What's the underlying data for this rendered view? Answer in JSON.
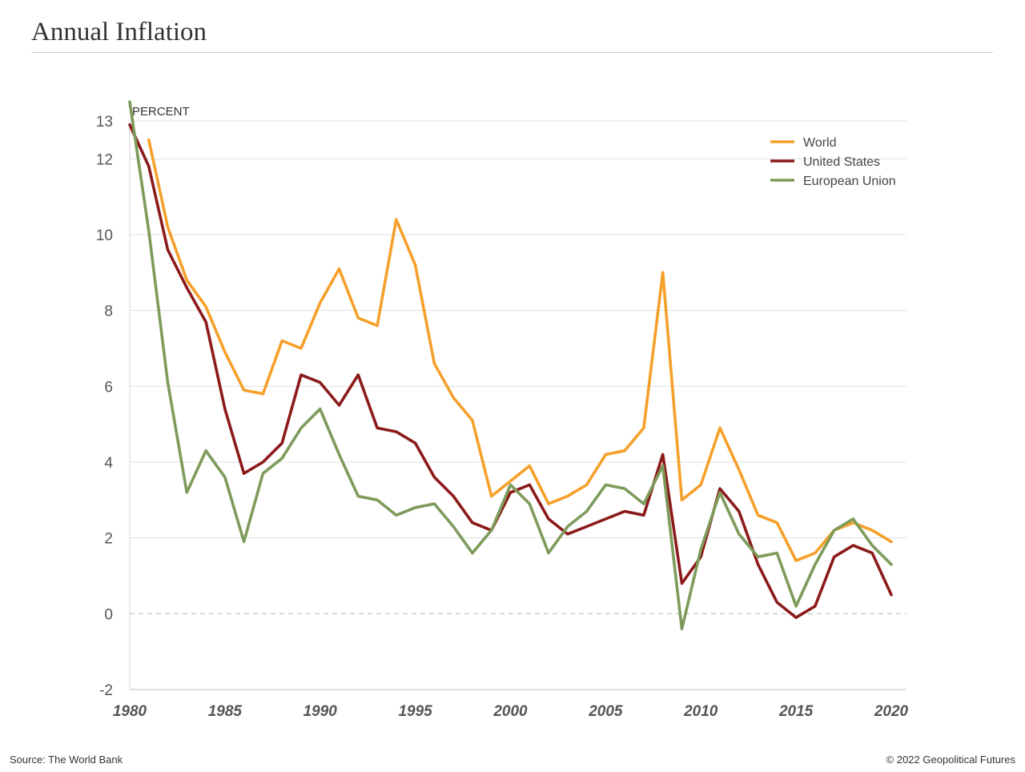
{
  "header": {
    "title": "Annual Inflation"
  },
  "footer": {
    "source": "Source: The World Bank",
    "copyright": "© 2022 Geopolitical Futures"
  },
  "chart_data": {
    "type": "line",
    "title": "Annual Inflation",
    "ylabel": "PERCENT",
    "xlabel": "",
    "xlim": [
      1980,
      2020.8
    ],
    "ylim": [
      -2,
      13
    ],
    "yticks": [
      13,
      12,
      10,
      8,
      6,
      4,
      2,
      0,
      -2
    ],
    "xticks": [
      1980,
      1985,
      1990,
      1995,
      2000,
      2005,
      2010,
      2015,
      2020
    ],
    "x": [
      1980,
      1981,
      1982,
      1983,
      1984,
      1985,
      1986,
      1987,
      1988,
      1989,
      1990,
      1991,
      1992,
      1993,
      1994,
      1995,
      1996,
      1997,
      1998,
      1999,
      2000,
      2001,
      2002,
      2003,
      2004,
      2005,
      2006,
      2007,
      2008,
      2009,
      2010,
      2011,
      2012,
      2013,
      2014,
      2015,
      2016,
      2017,
      2018,
      2019,
      2020
    ],
    "legend_position": "top-right",
    "series": [
      {
        "name": "World",
        "color": "#f5a02a",
        "values": [
          null,
          12.5,
          10.2,
          8.8,
          8.1,
          6.9,
          5.9,
          5.8,
          7.2,
          7.0,
          8.2,
          9.1,
          7.8,
          7.6,
          10.4,
          9.2,
          6.6,
          5.7,
          5.1,
          3.1,
          3.5,
          3.9,
          2.9,
          3.1,
          3.4,
          4.2,
          4.3,
          4.9,
          9.0,
          3.0,
          3.4,
          4.9,
          3.8,
          2.6,
          2.4,
          1.4,
          1.6,
          2.2,
          2.4,
          2.2,
          1.9
        ]
      },
      {
        "name": "United States",
        "color": "#8b1a1a",
        "values": [
          12.9,
          11.8,
          9.6,
          8.6,
          7.7,
          5.4,
          3.7,
          4.0,
          4.5,
          6.3,
          6.1,
          5.5,
          6.3,
          4.9,
          4.8,
          4.5,
          3.6,
          3.1,
          2.4,
          2.2,
          3.2,
          3.4,
          2.5,
          2.1,
          2.3,
          2.5,
          2.7,
          2.6,
          4.2,
          0.8,
          1.5,
          3.3,
          2.7,
          1.3,
          0.3,
          -0.1,
          0.2,
          1.5,
          1.8,
          1.6,
          0.5
        ]
      },
      {
        "name": "European Union",
        "color": "#7d9b5a",
        "values": [
          13.5,
          10.1,
          6.1,
          3.2,
          4.3,
          3.6,
          1.9,
          3.7,
          4.1,
          4.9,
          5.4,
          4.2,
          3.1,
          3.0,
          2.6,
          2.8,
          2.9,
          2.3,
          1.6,
          2.2,
          3.4,
          2.9,
          1.6,
          2.3,
          2.7,
          3.4,
          3.3,
          2.9,
          3.9,
          -0.4,
          1.7,
          3.2,
          2.1,
          1.5,
          1.6,
          0.2,
          1.3,
          2.2,
          2.5,
          1.8,
          1.3
        ]
      }
    ]
  }
}
